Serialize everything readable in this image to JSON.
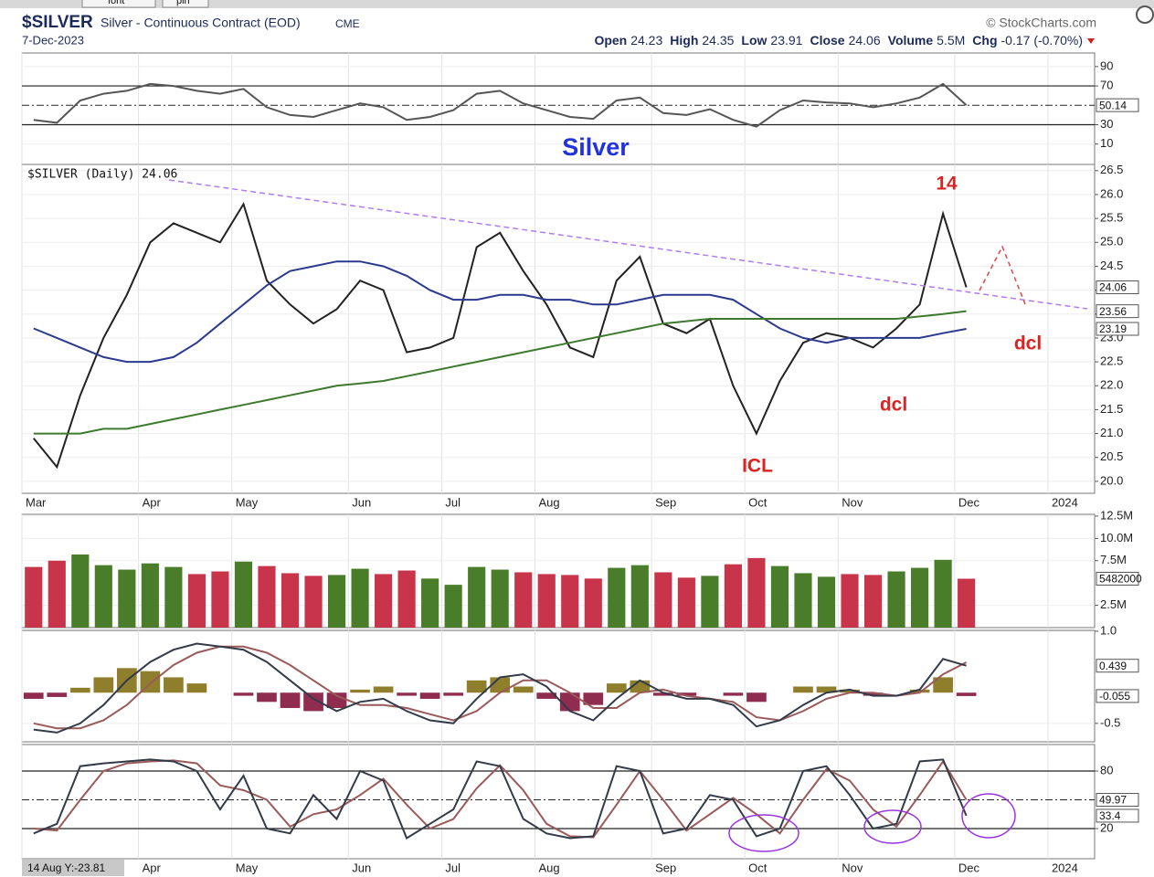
{
  "header": {
    "toolbar": [
      "font",
      "pin"
    ],
    "symbol": "$SILVER",
    "name": "Silver - Continuous Contract (EOD)",
    "exchange": "CME",
    "date": "7-Dec-2023",
    "brand": "© StockCharts.com",
    "quote": [
      {
        "label": "Open",
        "value": 24.23
      },
      {
        "label": "High",
        "value": 24.35
      },
      {
        "label": "Low",
        "value": 23.91
      },
      {
        "label": "Close",
        "value": 24.06
      },
      {
        "label": "Volume",
        "value": "5.5M"
      },
      {
        "label": "Chg",
        "value": "-0.17 (-0.70%)"
      }
    ],
    "crosshair": "14 Aug Y:-23.81"
  },
  "chart_data": [
    {
      "type": "line",
      "ylim": [
        -11,
        104
      ],
      "yticks": [
        10,
        30,
        70,
        90
      ],
      "hlines": [
        30,
        70
      ],
      "midline": 50,
      "annotations": [
        {
          "text": "Silver",
          "color": "#2233dd"
        }
      ],
      "series": [
        {
          "color": "#555555",
          "last_label": true,
          "values": [
            35,
            32,
            55,
            62,
            65,
            72,
            70,
            65,
            62,
            67,
            48,
            40,
            38,
            45,
            52,
            48,
            35,
            38,
            45,
            62,
            65,
            52,
            45,
            38,
            36,
            55,
            58,
            42,
            40,
            46,
            35,
            28,
            45,
            55,
            53,
            52,
            48,
            52,
            58,
            72,
            50.14,
            null,
            null,
            null,
            null,
            null
          ]
        }
      ]
    },
    {
      "type": "line",
      "categories": [
        "Mar",
        null,
        null,
        null,
        null,
        "Apr",
        null,
        null,
        null,
        "May",
        null,
        null,
        null,
        null,
        "Jun",
        null,
        null,
        null,
        "Jul",
        null,
        null,
        null,
        "Aug",
        null,
        null,
        null,
        null,
        "Sep",
        null,
        null,
        null,
        "Oct",
        null,
        null,
        null,
        "Nov",
        null,
        null,
        null,
        null,
        "Dec",
        null,
        null,
        null,
        "2024",
        null
      ],
      "ylim": [
        19.75,
        26.63
      ],
      "yticks": [
        {
          "value": 20,
          "label": "20.0"
        },
        20.5,
        {
          "value": 21,
          "label": "21.0"
        },
        21.5,
        {
          "value": 22,
          "label": "22.0"
        },
        22.5,
        {
          "value": 23,
          "label": "23.0"
        },
        23.5,
        {
          "value": 24,
          "label": "24.0"
        },
        24.5,
        {
          "value": 25,
          "label": "25.0"
        },
        25.5,
        {
          "value": 26,
          "label": "26.0"
        },
        26.5
      ],
      "annotations": [
        {
          "text": "14",
          "color": "#dd2222"
        },
        {
          "text": "dcl",
          "color": "#dd2222"
        },
        {
          "text": "dcl",
          "color": "#dd2222"
        },
        {
          "text": "ICL",
          "color": "#dd2222"
        }
      ],
      "series": [
        {
          "name": "$SILVER (Daily) 24.06",
          "color": "#222222",
          "last_label": true,
          "values": [
            20.9,
            20.3,
            21.8,
            23.0,
            23.9,
            25.0,
            25.4,
            25.2,
            25.0,
            25.8,
            24.2,
            23.7,
            23.3,
            23.6,
            24.2,
            24.0,
            22.7,
            22.8,
            23.0,
            24.9,
            25.2,
            24.4,
            23.7,
            22.8,
            22.6,
            24.2,
            24.7,
            23.3,
            23.1,
            23.4,
            22.0,
            21.0,
            22.1,
            22.9,
            23.1,
            23.0,
            22.8,
            23.2,
            23.7,
            25.6,
            24.06,
            null,
            null,
            null,
            null,
            null
          ]
        },
        {
          "color": "#2b3a8f",
          "last_label": true,
          "values": [
            23.2,
            23.0,
            22.8,
            22.6,
            22.5,
            22.5,
            22.6,
            22.9,
            23.3,
            23.7,
            24.1,
            24.4,
            24.5,
            24.6,
            24.6,
            24.5,
            24.3,
            24.0,
            23.8,
            23.8,
            23.9,
            23.9,
            23.8,
            23.8,
            23.7,
            23.7,
            23.8,
            23.9,
            23.9,
            23.9,
            23.8,
            23.5,
            23.2,
            23.0,
            22.9,
            23.0,
            23.0,
            23.0,
            23.0,
            23.1,
            23.19,
            null,
            null,
            null,
            null,
            null
          ]
        },
        {
          "color": "#3d7a2e",
          "last_label": true,
          "values": [
            21.0,
            21.0,
            21.0,
            21.1,
            21.1,
            21.2,
            21.3,
            21.4,
            21.5,
            21.6,
            21.7,
            21.8,
            21.9,
            22.0,
            22.05,
            22.1,
            22.2,
            22.3,
            22.4,
            22.5,
            22.6,
            22.7,
            22.8,
            22.9,
            23.0,
            23.1,
            23.2,
            23.3,
            23.35,
            23.4,
            23.4,
            23.4,
            23.4,
            23.4,
            23.4,
            23.4,
            23.4,
            23.4,
            23.45,
            23.5,
            23.56,
            null,
            null,
            null,
            null,
            null
          ]
        }
      ]
    },
    {
      "type": "bar",
      "ylim": [
        0,
        12700000
      ],
      "yticks": [
        {
          "value": 2500000,
          "label": "2.5M"
        },
        {
          "value": 7500000,
          "label": "7.5M"
        },
        {
          "value": 10000000,
          "label": "10.0M"
        },
        {
          "value": 12500000,
          "label": "12.5M"
        }
      ],
      "last_label": true,
      "values": [
        6800000,
        7500000,
        8200000,
        7000000,
        6500000,
        7200000,
        6800000,
        6000000,
        6300000,
        7400000,
        6900000,
        6100000,
        5800000,
        5900000,
        6600000,
        6000000,
        6400000,
        5500000,
        4800000,
        6800000,
        6500000,
        6200000,
        6000000,
        5900000,
        5500000,
        6700000,
        7000000,
        6200000,
        5600000,
        5800000,
        7100000,
        7800000,
        6900000,
        6100000,
        5700000,
        6000000,
        5900000,
        6300000,
        6700000,
        7600000,
        5482000
      ],
      "colors": [
        "#c8344a",
        "#c8344a",
        "#4a7d2a",
        "#4a7d2a",
        "#4a7d2a",
        "#4a7d2a",
        "#4a7d2a",
        "#c8344a",
        "#c8344a",
        "#4a7d2a",
        "#c8344a",
        "#c8344a",
        "#c8344a",
        "#4a7d2a",
        "#4a7d2a",
        "#c8344a",
        "#c8344a",
        "#4a7d2a",
        "#4a7d2a",
        "#4a7d2a",
        "#4a7d2a",
        "#c8344a",
        "#c8344a",
        "#c8344a",
        "#c8344a",
        "#4a7d2a",
        "#4a7d2a",
        "#c8344a",
        "#c8344a",
        "#4a7d2a",
        "#c8344a",
        "#c8344a",
        "#4a7d2a",
        "#4a7d2a",
        "#4a7d2a",
        "#c8344a",
        "#c8344a",
        "#4a7d2a",
        "#4a7d2a",
        "#4a7d2a",
        "#c8344a"
      ]
    },
    {
      "type": "line",
      "ylim": [
        -0.8,
        1.015
      ],
      "yticks": [
        -0.5,
        {
          "value": 1,
          "label": "1.0"
        }
      ],
      "series": [
        {
          "type": "bar",
          "color": "#8f7f2c",
          "negative_color": "#8f2c50",
          "last_label": true,
          "values": [
            -0.1,
            -0.07,
            0.08,
            0.25,
            0.4,
            0.35,
            0.25,
            0.15,
            0.0,
            -0.05,
            -0.15,
            -0.25,
            -0.3,
            -0.25,
            0.05,
            0.1,
            -0.05,
            -0.1,
            -0.05,
            0.2,
            0.25,
            0.1,
            -0.1,
            -0.3,
            -0.2,
            0.15,
            0.2,
            -0.05,
            -0.05,
            0.0,
            -0.05,
            -0.15,
            0.0,
            0.1,
            0.1,
            0.05,
            -0.05,
            0.0,
            0.05,
            0.25,
            -0.055,
            null,
            null,
            null,
            null,
            null
          ]
        },
        {
          "color": "#9a5a5a",
          "values": [
            -0.5,
            -0.58,
            -0.58,
            -0.45,
            -0.2,
            0.15,
            0.45,
            0.65,
            0.75,
            0.75,
            0.65,
            0.45,
            0.2,
            -0.05,
            -0.2,
            -0.2,
            -0.25,
            -0.35,
            -0.45,
            -0.3,
            0.0,
            0.2,
            0.2,
            0.0,
            -0.25,
            -0.25,
            0.0,
            0.05,
            -0.05,
            -0.1,
            -0.15,
            -0.4,
            -0.45,
            -0.3,
            -0.1,
            0.0,
            0.0,
            -0.05,
            0.0,
            0.3,
            0.494,
            null,
            null,
            null,
            null,
            null
          ]
        },
        {
          "color": "#333a48",
          "last_label": true,
          "values": [
            -0.6,
            -0.65,
            -0.5,
            -0.2,
            0.2,
            0.5,
            0.7,
            0.8,
            0.75,
            0.7,
            0.5,
            0.2,
            -0.1,
            -0.3,
            -0.15,
            -0.1,
            -0.3,
            -0.45,
            -0.5,
            -0.1,
            0.25,
            0.3,
            0.1,
            -0.3,
            -0.45,
            -0.1,
            0.2,
            0.0,
            -0.1,
            -0.1,
            -0.2,
            -0.55,
            -0.45,
            -0.2,
            0.0,
            0.05,
            -0.05,
            -0.05,
            0.05,
            0.55,
            0.439,
            null,
            null,
            null,
            null,
            null
          ]
        }
      ]
    },
    {
      "type": "line",
      "categories": [
        "Mar",
        null,
        null,
        null,
        null,
        "Apr",
        null,
        null,
        null,
        "May",
        null,
        null,
        null,
        null,
        "Jun",
        null,
        null,
        null,
        "Jul",
        null,
        null,
        null,
        "Aug",
        null,
        null,
        null,
        null,
        "Sep",
        null,
        null,
        null,
        "Oct",
        null,
        null,
        null,
        "Nov",
        null,
        null,
        null,
        null,
        "Dec",
        null,
        null,
        null,
        "2024",
        null
      ],
      "ylim": [
        -11.4,
        107.6
      ],
      "yticks": [
        20,
        80
      ],
      "hlines": [
        20,
        80
      ],
      "midline": 50,
      "series": [
        {
          "color": "#9a5a5a",
          "last_label": true,
          "values": [
            20,
            18,
            50,
            80,
            88,
            90,
            91,
            88,
            65,
            60,
            50,
            22,
            35,
            40,
            55,
            72,
            45,
            20,
            30,
            62,
            86,
            60,
            25,
            12,
            11,
            45,
            80,
            50,
            18,
            35,
            52,
            35,
            15,
            50,
            82,
            70,
            40,
            22,
            55,
            90,
            49.97,
            null,
            null,
            null,
            null,
            null
          ]
        },
        {
          "color": "#333a48",
          "last_label": true,
          "values": [
            15,
            25,
            85,
            88,
            90,
            92,
            90,
            80,
            40,
            75,
            20,
            15,
            55,
            30,
            80,
            70,
            10,
            25,
            40,
            90,
            85,
            30,
            15,
            10,
            12,
            85,
            80,
            15,
            20,
            55,
            50,
            12,
            20,
            80,
            85,
            55,
            20,
            25,
            90,
            92,
            33.4,
            null,
            null,
            null,
            null,
            null
          ]
        }
      ]
    }
  ]
}
